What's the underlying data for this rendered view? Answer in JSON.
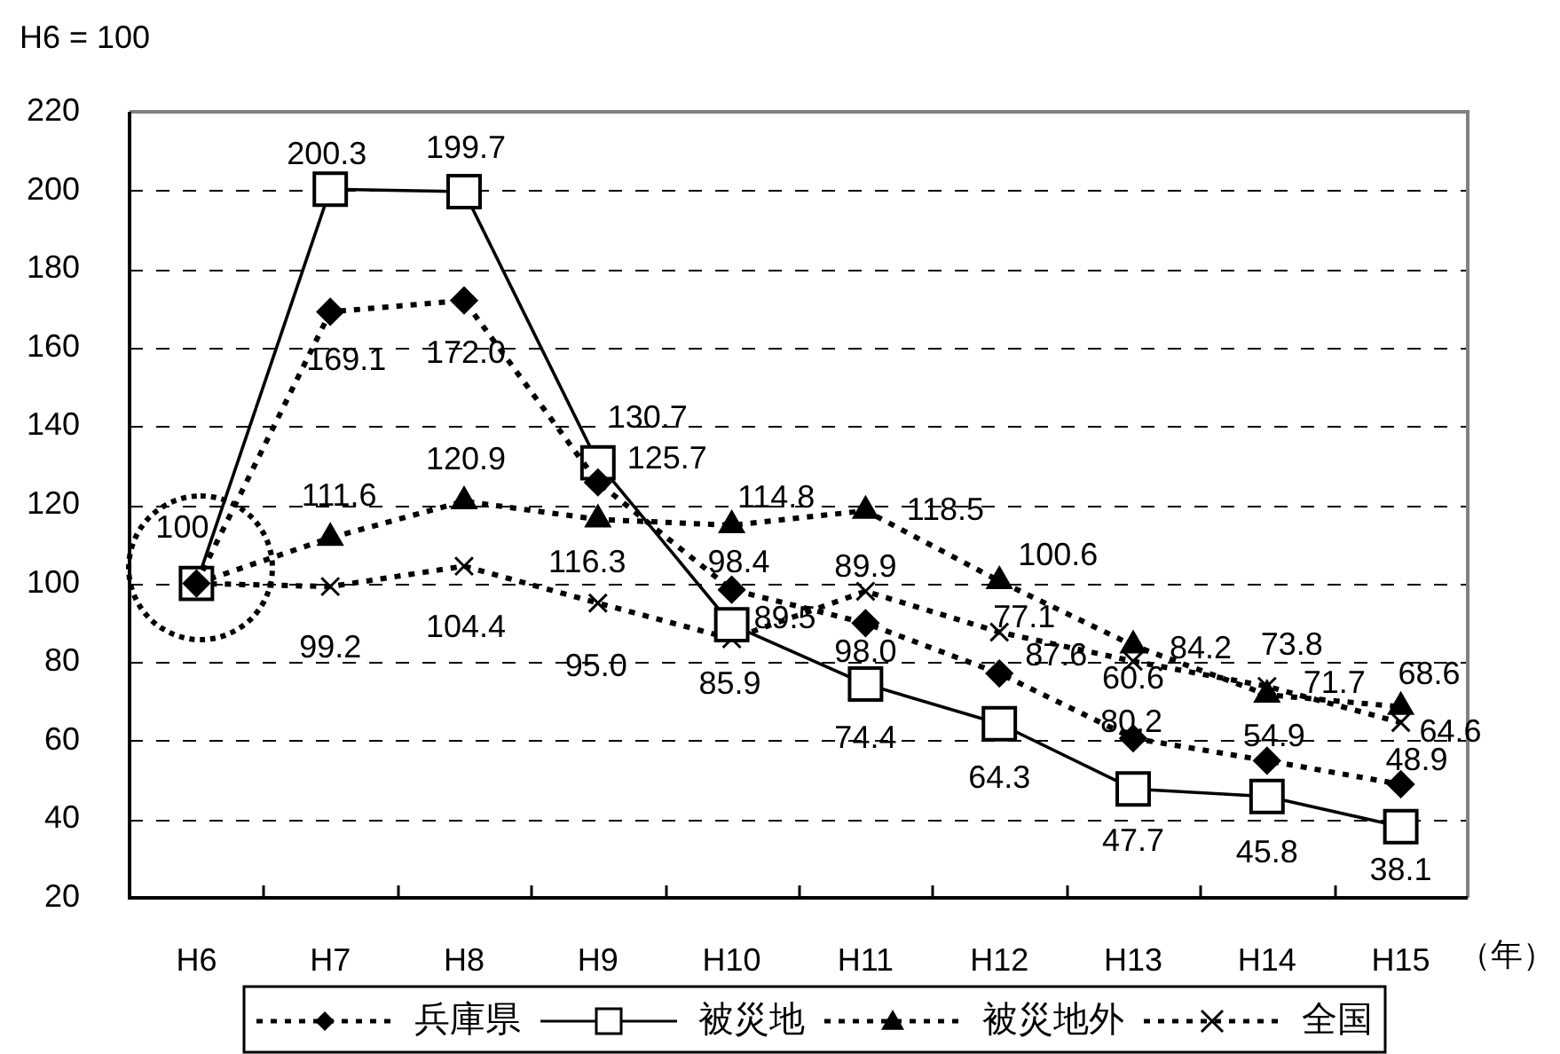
{
  "chart_data": {
    "type": "line",
    "ylabel": "H6 = 100",
    "xlabel": "（年）",
    "categories": [
      "H6",
      "H7",
      "H8",
      "H9",
      "H10",
      "H11",
      "H12",
      "H13",
      "H14",
      "H15"
    ],
    "series": [
      {
        "name": "兵庫県",
        "color": "#000000",
        "marker": "diamond",
        "line_style": "dotted",
        "values": [
          100,
          169.1,
          172.0,
          125.7,
          98.4,
          89.9,
          77.1,
          60.6,
          54.9,
          48.9
        ],
        "value_labels": [
          null,
          "169.1",
          "172.0",
          "125.7",
          "98.4",
          "89.9",
          "77.1",
          "60.6",
          "54.9",
          "48.9"
        ]
      },
      {
        "name": "被災地",
        "color": "#000000",
        "marker": "square",
        "line_style": "solid",
        "values": [
          100,
          200.3,
          199.7,
          130.7,
          89.5,
          74.4,
          64.3,
          47.7,
          45.8,
          38.1
        ],
        "value_labels": [
          "100",
          "200.3",
          "199.7",
          "130.7",
          "89.5",
          "74.4",
          "64.3",
          "47.7",
          "45.8",
          "38.1"
        ]
      },
      {
        "name": "被災地外",
        "color": "#000000",
        "marker": "triangle",
        "line_style": "dotted",
        "values": [
          100,
          111.6,
          120.9,
          116.3,
          114.8,
          118.5,
          100.6,
          84.2,
          71.7,
          68.6
        ],
        "value_labels": [
          null,
          "111.6",
          "120.9",
          "116.3",
          "114.8",
          "118.5",
          "100.6",
          "84.2",
          "71.7",
          "68.6"
        ]
      },
      {
        "name": "全国",
        "color": "#000000",
        "marker": "cross",
        "line_style": "dotted",
        "values": [
          100,
          99.2,
          104.4,
          95.0,
          85.9,
          98.0,
          87.6,
          80.2,
          73.8,
          64.6
        ],
        "value_labels": [
          null,
          "99.2",
          "104.4",
          "95.0",
          "85.9",
          "98.0",
          "87.6",
          "80.2",
          "73.8",
          "64.6"
        ]
      }
    ],
    "ylim": [
      20,
      220
    ],
    "yticks": [
      20,
      40,
      60,
      80,
      100,
      120,
      140,
      160,
      180,
      200,
      220
    ],
    "grid": "y",
    "legend": "bottom"
  }
}
